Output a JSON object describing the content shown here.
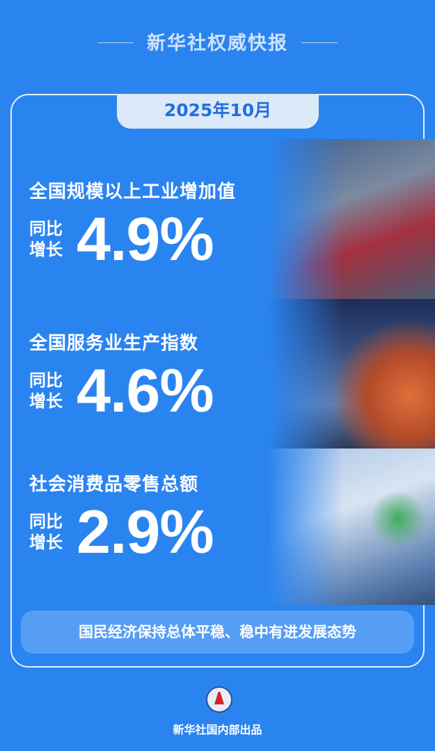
{
  "header": {
    "title": "新华社权威快报"
  },
  "date_tab": "2025年10月",
  "sections": [
    {
      "title": "全国规模以上工业增加值",
      "yoy_line1": "同比",
      "yoy_line2": "增长",
      "value": "4.9%"
    },
    {
      "title": "全国服务业生产指数",
      "yoy_line1": "同比",
      "yoy_line2": "增长",
      "value": "4.6%"
    },
    {
      "title": "社会消费品零售总额",
      "yoy_line1": "同比",
      "yoy_line2": "增长",
      "value": "2.9%"
    }
  ],
  "slogan": "国民经济保持总体平稳、稳中有进发展态势",
  "footer": {
    "logo": "Xinhua emblem",
    "credit": "新华社国内部出品"
  },
  "colors": {
    "background": "#2a84f0",
    "tab": "#dce9f8",
    "tab_text": "#2270e0"
  }
}
